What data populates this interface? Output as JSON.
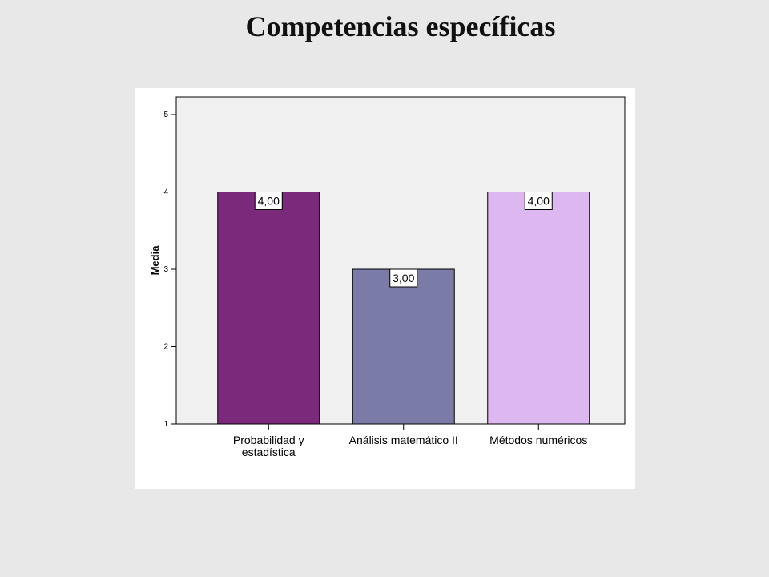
{
  "slide": {
    "title": "Competencias específicas"
  },
  "chart_data": {
    "type": "bar",
    "categories": [
      [
        "Probabilidad y",
        "estadística"
      ],
      [
        "Análisis matemático II"
      ],
      [
        "Métodos numéricos"
      ]
    ],
    "values": [
      4.0,
      3.0,
      4.0
    ],
    "data_labels": [
      "4,00",
      "3,00",
      "4,00"
    ],
    "colors": [
      "#7b2a7b",
      "#7b7ba8",
      "#ddb8f0"
    ],
    "plot_background": "#f0f0f0",
    "title": "",
    "xlabel": "",
    "ylabel": "Media",
    "ylim": [
      1,
      5
    ],
    "yticks": [
      1,
      2,
      3,
      4,
      5
    ],
    "grid": false,
    "legend": "none"
  }
}
